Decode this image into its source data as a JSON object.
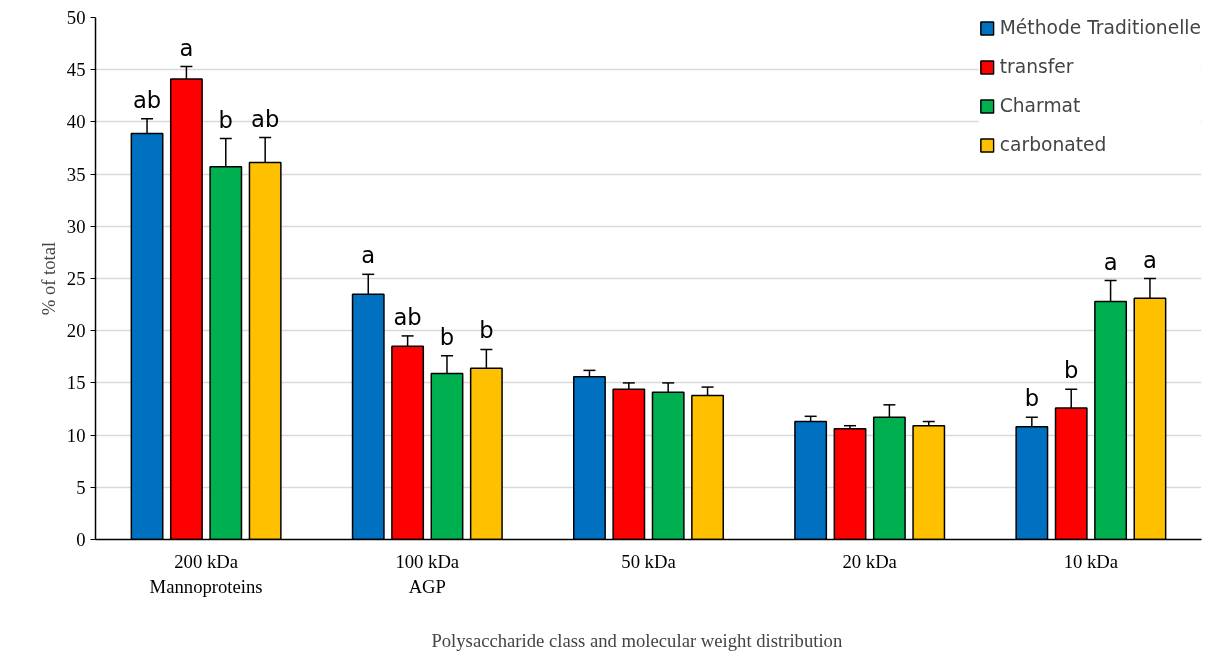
{
  "chart_data": {
    "type": "bar",
    "xlabel": "Polysaccharide  class  and  molecular  weight  distribution",
    "ylabel": "% of total",
    "categories": [
      "200 kDa\nMannoproteins",
      "100 kDa\nAGP",
      "50 kDa",
      "20 kDa",
      "10 kDa"
    ],
    "series": [
      {
        "name": "Méthode Traditionelle",
        "color": "#0070c0",
        "values": [
          38.9,
          23.5,
          15.6,
          11.3,
          10.8
        ],
        "errors": [
          1.4,
          1.9,
          0.6,
          0.5,
          0.9
        ],
        "value_labels": [
          "ab",
          "a",
          null,
          null,
          "b"
        ]
      },
      {
        "name": "transfer",
        "color": "#ff0000",
        "values": [
          44.1,
          18.5,
          14.4,
          10.6,
          12.6
        ],
        "errors": [
          1.2,
          1.0,
          0.6,
          0.3,
          1.8
        ],
        "value_labels": [
          "a",
          "ab",
          null,
          null,
          "b"
        ]
      },
      {
        "name": "Charmat",
        "color": "#00b050",
        "values": [
          35.7,
          15.9,
          14.1,
          11.7,
          22.8
        ],
        "errors": [
          2.7,
          1.7,
          0.9,
          1.2,
          2.0
        ],
        "value_labels": [
          "b",
          "b",
          null,
          null,
          "a"
        ]
      },
      {
        "name": "carbonated",
        "color": "#ffc000",
        "values": [
          36.1,
          16.4,
          13.8,
          10.9,
          23.1
        ],
        "errors": [
          2.4,
          1.8,
          0.8,
          0.4,
          1.9
        ],
        "value_labels": [
          "ab",
          "b",
          null,
          null,
          "a"
        ]
      }
    ],
    "ylim": [
      0,
      50
    ],
    "yticks": [
      0,
      5,
      10,
      15,
      20,
      25,
      30,
      35,
      40,
      45,
      50
    ],
    "grid": "y",
    "legend": "top right"
  }
}
